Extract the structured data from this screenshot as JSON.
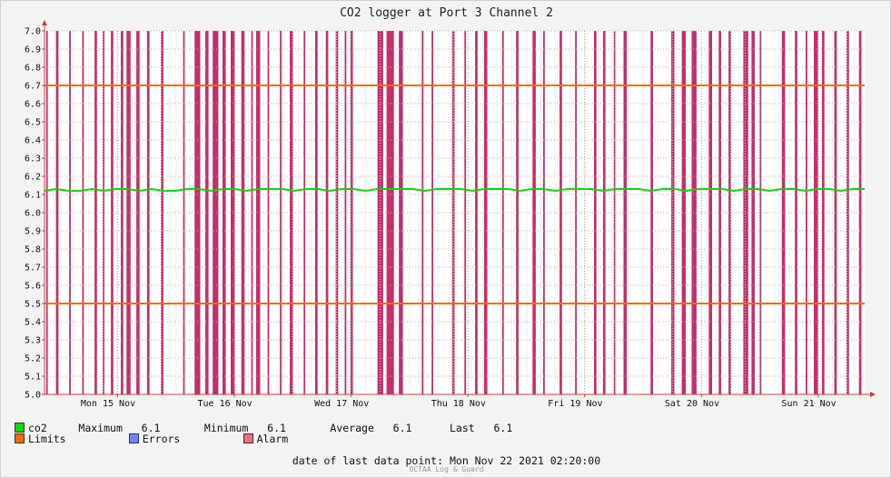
{
  "chart_data": {
    "type": "line",
    "title": "CO2 logger at Port 3 Channel 2",
    "ylim": [
      5.0,
      7.0
    ],
    "y_ticks": [
      "5.0",
      "5.1",
      "5.2",
      "5.3",
      "5.4",
      "5.5",
      "5.6",
      "5.7",
      "5.8",
      "5.9",
      "6.0",
      "6.1",
      "6.2",
      "6.3",
      "6.4",
      "6.5",
      "6.6",
      "6.7",
      "6.8",
      "6.9",
      "7.0"
    ],
    "x_ticks": [
      "Mon 15 Nov",
      "Tue 16 Nov",
      "Wed 17 Nov",
      "Thu 18 Nov",
      "Fri 19 Nov",
      "Sat 20 Nov",
      "Sun 21 Nov"
    ],
    "grid": true,
    "series": [
      {
        "name": "co2",
        "color": "#00e000",
        "values": [
          6.12,
          6.13,
          6.12,
          6.12,
          6.13,
          6.12,
          6.13,
          6.13,
          6.12,
          6.13,
          6.12,
          6.12,
          6.13,
          6.13,
          6.12,
          6.13,
          6.13,
          6.12,
          6.13,
          6.13,
          6.13,
          6.12,
          6.13,
          6.13,
          6.12,
          6.13,
          6.13,
          6.12,
          6.13,
          6.13,
          6.13,
          6.13,
          6.12,
          6.13,
          6.13,
          6.13,
          6.12,
          6.13,
          6.13,
          6.13,
          6.12,
          6.13,
          6.13,
          6.12,
          6.13,
          6.13,
          6.13,
          6.12,
          6.13,
          6.13,
          6.13,
          6.12,
          6.13,
          6.13,
          6.12,
          6.13,
          6.13,
          6.13,
          6.12,
          6.13,
          6.13,
          6.12,
          6.13,
          6.13,
          6.12,
          6.13,
          6.13,
          6.12,
          6.13,
          6.13
        ]
      }
    ],
    "limits": {
      "upper": 6.7,
      "lower": 5.5,
      "color": "#ff6600"
    },
    "alarm_color": "#c0306f",
    "alarm_spans": [
      [
        0.002,
        0.004
      ],
      [
        0.014,
        0.017
      ],
      [
        0.03,
        0.032
      ],
      [
        0.046,
        0.048
      ],
      [
        0.061,
        0.064
      ],
      [
        0.071,
        0.073
      ],
      [
        0.081,
        0.084
      ],
      [
        0.093,
        0.096
      ],
      [
        0.1,
        0.105
      ],
      [
        0.112,
        0.116
      ],
      [
        0.125,
        0.128
      ],
      [
        0.142,
        0.145
      ],
      [
        0.169,
        0.171
      ],
      [
        0.183,
        0.19
      ],
      [
        0.196,
        0.2
      ],
      [
        0.205,
        0.212
      ],
      [
        0.217,
        0.221
      ],
      [
        0.227,
        0.232
      ],
      [
        0.24,
        0.244
      ],
      [
        0.252,
        0.254
      ],
      [
        0.258,
        0.263
      ],
      [
        0.272,
        0.274
      ],
      [
        0.287,
        0.289
      ],
      [
        0.299,
        0.303
      ],
      [
        0.316,
        0.318
      ],
      [
        0.33,
        0.333
      ],
      [
        0.343,
        0.346
      ],
      [
        0.355,
        0.358
      ],
      [
        0.366,
        0.368
      ],
      [
        0.373,
        0.376
      ],
      [
        0.406,
        0.413
      ],
      [
        0.417,
        0.426
      ],
      [
        0.432,
        0.437
      ],
      [
        0.46,
        0.462
      ],
      [
        0.472,
        0.474
      ],
      [
        0.497,
        0.5
      ],
      [
        0.512,
        0.514
      ],
      [
        0.525,
        0.528
      ],
      [
        0.536,
        0.54
      ],
      [
        0.558,
        0.56
      ],
      [
        0.575,
        0.578
      ],
      [
        0.595,
        0.599
      ],
      [
        0.608,
        0.61
      ],
      [
        0.628,
        0.631
      ],
      [
        0.647,
        0.649
      ],
      [
        0.67,
        0.673
      ],
      [
        0.681,
        0.684
      ],
      [
        0.694,
        0.696
      ],
      [
        0.706,
        0.71
      ],
      [
        0.739,
        0.742
      ],
      [
        0.764,
        0.768
      ],
      [
        0.777,
        0.782
      ],
      [
        0.789,
        0.795
      ],
      [
        0.81,
        0.814
      ],
      [
        0.822,
        0.825
      ],
      [
        0.834,
        0.837
      ],
      [
        0.852,
        0.858
      ],
      [
        0.862,
        0.866
      ],
      [
        0.872,
        0.874
      ],
      [
        0.899,
        0.903
      ],
      [
        0.915,
        0.918
      ],
      [
        0.928,
        0.93
      ],
      [
        0.938,
        0.943
      ],
      [
        0.948,
        0.951
      ],
      [
        0.963,
        0.966
      ],
      [
        0.978,
        0.981
      ],
      [
        0.993,
        0.996
      ]
    ]
  },
  "legend": {
    "co2": {
      "label": "co2",
      "color": "#00e000"
    },
    "stats": {
      "max_label": "Maximum",
      "max_value": "6.1",
      "min_label": "Minimum",
      "min_value": "6.1",
      "avg_label": "Average",
      "avg_value": "6.1",
      "last_label": "Last",
      "last_value": "6.1"
    },
    "limits": {
      "label": "Limits",
      "color": "#ff6600"
    },
    "errors": {
      "label": "Errors",
      "color": "#6a86ff"
    },
    "alarm": {
      "label": "Alarm",
      "color": "#f07080"
    }
  },
  "footer": {
    "label": "date of last data point:",
    "value": "Mon Nov 22 2021 02:20:00"
  },
  "credit": "OCTAA Log & Guard"
}
